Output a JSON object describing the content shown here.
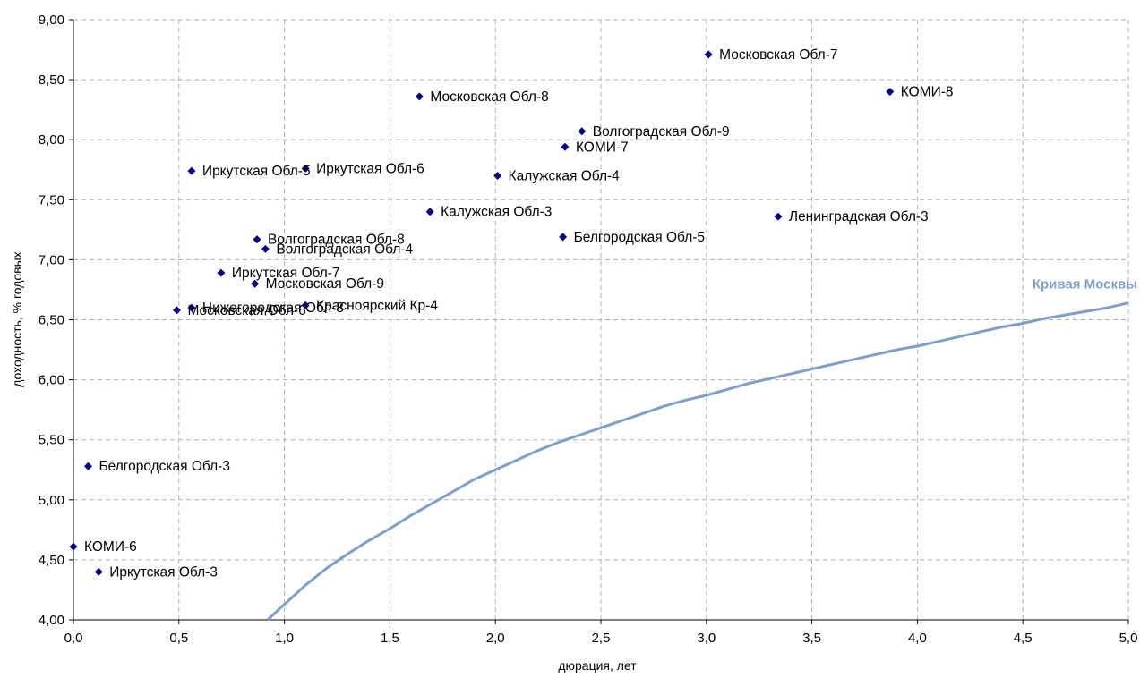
{
  "chart_data": {
    "type": "scatter",
    "title": "",
    "xlabel": "дюрация, лет",
    "ylabel": "доходность, % годовых",
    "xlim": [
      0,
      5
    ],
    "ylim": [
      4,
      9
    ],
    "grid": true,
    "x_ticks": [
      "0,0",
      "0,5",
      "1,0",
      "1,5",
      "2,0",
      "2,5",
      "3,0",
      "3,5",
      "4,0",
      "4,5",
      "5,0"
    ],
    "y_ticks": [
      "4,00",
      "4,50",
      "5,00",
      "5,50",
      "6,00",
      "6,50",
      "7,00",
      "7,50",
      "8,00",
      "8,50",
      "9,00"
    ],
    "points": [
      {
        "label": "Московская Обл-7",
        "x": 3.01,
        "y": 8.71
      },
      {
        "label": "КОМИ-8",
        "x": 3.87,
        "y": 8.4
      },
      {
        "label": "Московская Обл-8",
        "x": 1.64,
        "y": 8.36
      },
      {
        "label": "Волгоградская Обл-9",
        "x": 2.41,
        "y": 8.07
      },
      {
        "label": "КОМИ-7",
        "x": 2.33,
        "y": 7.94
      },
      {
        "label": "Иркутская Обл-6",
        "x": 1.1,
        "y": 7.76
      },
      {
        "label": "Иркутская Обл-5",
        "x": 0.56,
        "y": 7.74
      },
      {
        "label": "Калужская Обл-4",
        "x": 2.01,
        "y": 7.7
      },
      {
        "label": "Калужская Обл-3",
        "x": 1.69,
        "y": 7.4
      },
      {
        "label": "Ленинградская Обл-3",
        "x": 3.34,
        "y": 7.36
      },
      {
        "label": "Белгородская Обл-5",
        "x": 2.32,
        "y": 7.19
      },
      {
        "label": "Волгоградская Обл-8",
        "x": 0.87,
        "y": 7.17
      },
      {
        "label": "Волгоградская Обл-4",
        "x": 0.91,
        "y": 7.09
      },
      {
        "label": "Иркутская Обл-7",
        "x": 0.7,
        "y": 6.89
      },
      {
        "label": "Московская Обл-9",
        "x": 0.86,
        "y": 6.8
      },
      {
        "label": "Красноярский Кр-4",
        "x": 1.1,
        "y": 6.62
      },
      {
        "label": "Нижегородская Обл-3",
        "x": 0.56,
        "y": 6.6
      },
      {
        "label": "Московская Обл-6",
        "x": 0.49,
        "y": 6.58
      },
      {
        "label": "Белгородская Обл-3",
        "x": 0.07,
        "y": 5.28
      },
      {
        "label": "КОМИ-6",
        "x": 0.0,
        "y": 4.61
      },
      {
        "label": "Иркутская Обл-3",
        "x": 0.12,
        "y": 4.4
      }
    ],
    "curve": {
      "name": "Кривая Москвы",
      "x": [
        0.92,
        1.0,
        1.1,
        1.2,
        1.3,
        1.4,
        1.5,
        1.6,
        1.7,
        1.8,
        1.9,
        2.0,
        2.1,
        2.2,
        2.3,
        2.4,
        2.5,
        2.6,
        2.7,
        2.8,
        2.9,
        3.0,
        3.1,
        3.2,
        3.3,
        3.4,
        3.5,
        3.6,
        3.7,
        3.8,
        3.9,
        4.0,
        4.1,
        4.2,
        4.3,
        4.4,
        4.5,
        4.6,
        4.7,
        4.8,
        4.9,
        5.0
      ],
      "y": [
        4.0,
        4.13,
        4.29,
        4.43,
        4.55,
        4.66,
        4.76,
        4.87,
        4.97,
        5.07,
        5.17,
        5.25,
        5.33,
        5.41,
        5.48,
        5.54,
        5.6,
        5.66,
        5.72,
        5.78,
        5.83,
        5.87,
        5.92,
        5.97,
        6.01,
        6.05,
        6.09,
        6.13,
        6.17,
        6.21,
        6.25,
        6.28,
        6.32,
        6.36,
        6.4,
        6.44,
        6.47,
        6.51,
        6.54,
        6.57,
        6.6,
        6.64
      ]
    },
    "colors": {
      "points": "#000080",
      "curve": "#7f9fcb",
      "grid": "#b0b0b0",
      "axis": "#000000"
    }
  }
}
